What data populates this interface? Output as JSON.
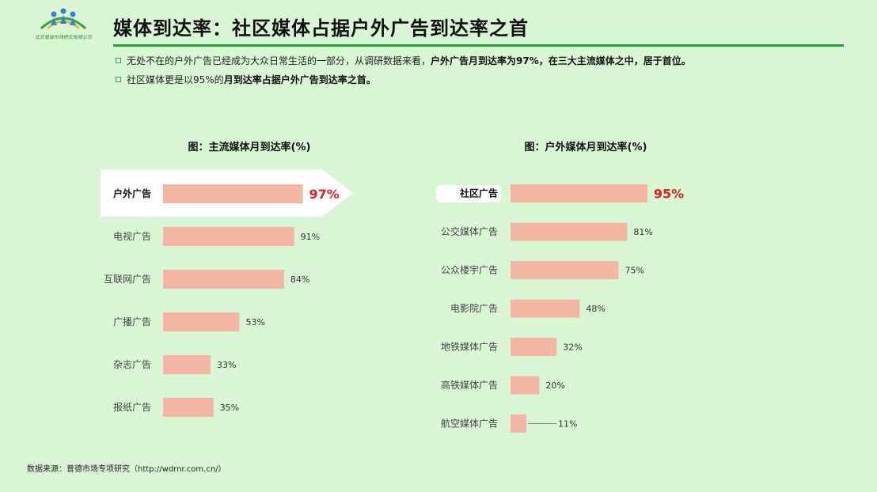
{
  "logo": {
    "text": "北京普瑞市场研究有限公司",
    "icon": "people-arch-icon"
  },
  "title": "媒体到达率：社区媒体占据户外广告到达率之首",
  "bullets": [
    {
      "normal": "无处不在的户外广告已经成为大众日常生活的一部分，从调研数据来看，",
      "bold": "户外广告月到达率为97%，在三大主流媒体之中，居于首位。"
    },
    {
      "normal": "社区媒体更是以95%的",
      "bold": "月到达率占据户外广告到达率之首。"
    }
  ],
  "colors": {
    "bar": "#f2b6a3",
    "highlight_value": "#e02020",
    "accent": "#23a33a",
    "background": "#d8f5d4"
  },
  "chart_data": [
    {
      "type": "bar",
      "orientation": "horizontal",
      "title": "图：主流媒体月到达率(%)",
      "categories": [
        "户外广告",
        "电视广告",
        "互联网广告",
        "广播广告",
        "杂志广告",
        "报纸广告"
      ],
      "values": [
        97,
        91,
        84,
        53,
        33,
        35
      ],
      "labels": [
        "97%",
        "91%",
        "84%",
        "53%",
        "33%",
        "35%"
      ],
      "highlight_index": 0
    },
    {
      "type": "bar",
      "orientation": "horizontal",
      "title": "图：户外媒体月到达率(%)",
      "categories": [
        "社区广告",
        "公交媒体广告",
        "公众楼宇广告",
        "电影院广告",
        "地铁媒体广告",
        "高铁媒体广告",
        "航空媒体广告"
      ],
      "values": [
        95,
        81,
        75,
        48,
        32,
        20,
        11
      ],
      "labels": [
        "95%",
        "81%",
        "75%",
        "48%",
        "32%",
        "20%",
        "11%"
      ],
      "highlight_index": 0
    }
  ],
  "source": "数据来源：普德市场专项研究（http://wdrnr.com.cn/）"
}
